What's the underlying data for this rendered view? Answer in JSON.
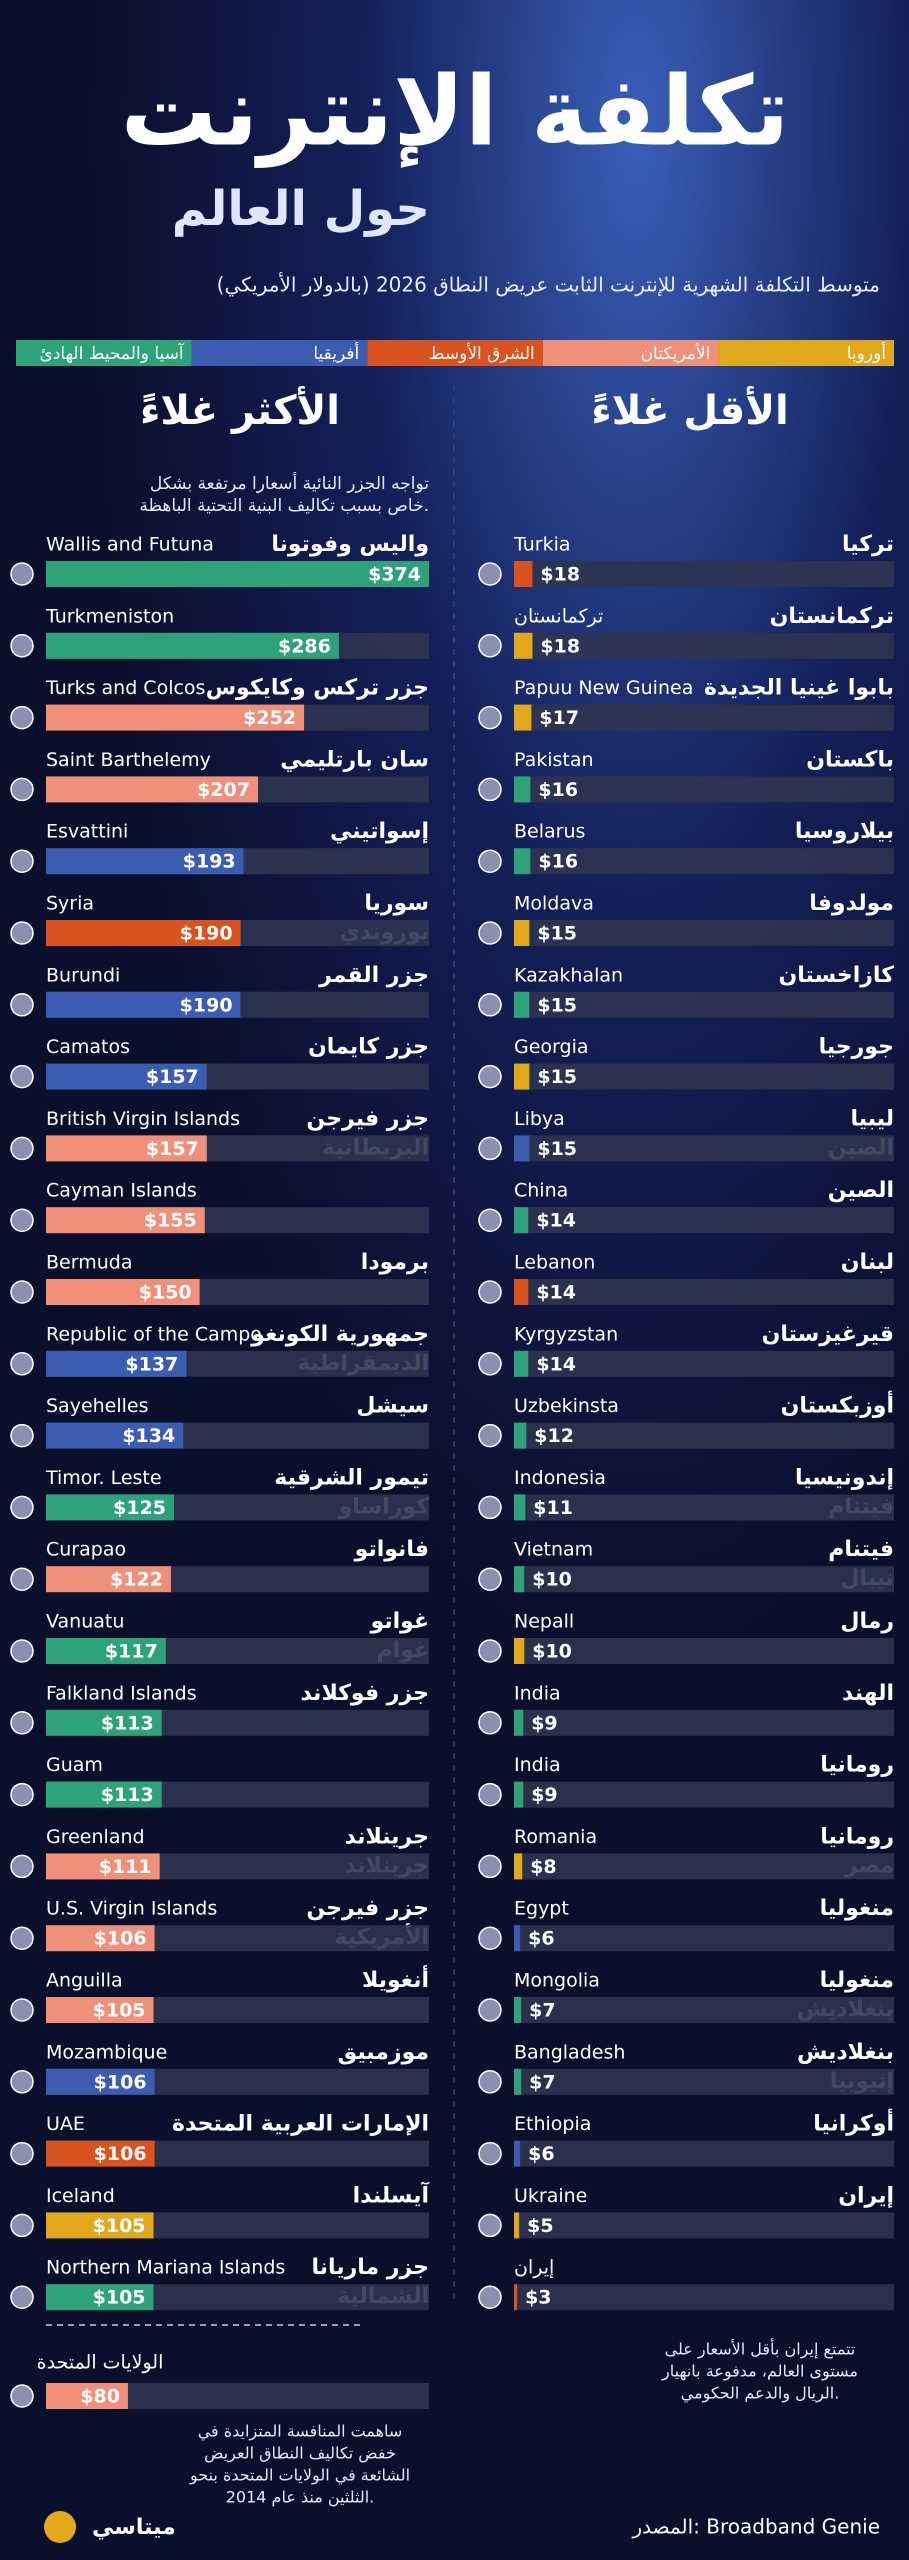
{
  "title": "تكلفة الإنترنت",
  "subtitle": "حول العالم",
  "description": "متوسط التكلفة الشهرية للإنترنت الثابت عريض النطاق 2026 (بالدولار الأمريكي)",
  "legend": [
    {
      "name": "أوروبا",
      "color": "#e0a81a"
    },
    {
      "name": "الأمريكتان",
      "color": "#f0907a"
    },
    {
      "name": "الشرق الأوسط",
      "color": "#d9531e"
    },
    {
      "name": "أفريقيا",
      "color": "#3b5cb0"
    },
    {
      "name": "آسيا والمحيط الهادئ",
      "color": "#2ea37a"
    }
  ],
  "note_islands": [
    "تواجه الجزر النائية أسعارا مرتفعة بشكل",
    "خاص بسبب تكاليف البنية التحتية الباهظة."
  ],
  "note_iran": [
    "تتمتع إيران بأقل الأسعار على",
    "مستوى العالم، مدفوعة بانهيار",
    "الريال والدعم الحكومي."
  ],
  "note_us": [
    "ساهمت المنافسة المتزايدة في",
    "خفض تكاليف النطاق العريض",
    "الشائعة في الولايات المتحدة بنحو",
    "الثلثين منذ عام 2014."
  ],
  "source": "المصدر: Broadband Genie",
  "brand": "ميتاسي",
  "chart_data": [
    {
      "type": "bar",
      "title": "الأكثر غلاءً",
      "categories": [
        "Wallis and Futuna",
        "Turkmeniston",
        "Turks and Colcos",
        "Saint Barthelemy",
        "Esvattini",
        "Syria",
        "Burundi",
        "Camatos",
        "British Virgin Islands",
        "Cayman Islands",
        "Bermuda",
        "Republic of the Campo",
        "Sayehelles",
        "Timor. Leste",
        "Curapao",
        "Vanuatu",
        "Falkland Islands",
        "Guam",
        "Greenland",
        "U.S. Virgin Islands",
        "Anguilla",
        "Mozambique",
        "UAE",
        "Iceland",
        "Northern Mariana Islands"
      ],
      "labels_ar": [
        [
          "واليس وفوتونا"
        ],
        [],
        [
          "جزر تركس وكايكوس"
        ],
        [
          "سان بارتليمي"
        ],
        [
          "إسواتيني"
        ],
        [
          "سوريا",
          "بوروندي"
        ],
        [
          "جزر القمر"
        ],
        [
          "جزر كايمان"
        ],
        [
          "جزر فيرجن",
          "البريطانية"
        ],
        [],
        [
          "برمودا"
        ],
        [
          "جمهورية الكونغو",
          "الديمقراطية"
        ],
        [
          "سيشل"
        ],
        [
          "تيمور الشرقية",
          "كوراساو"
        ],
        [
          "فانواتو"
        ],
        [
          "غواتو",
          "غوام"
        ],
        [
          "جزر فوكلاند"
        ],
        [],
        [
          "جرينلاند",
          "جرينلاند"
        ],
        [
          "جزر فيرجن",
          "الأمريكية"
        ],
        [
          "أنغويلا"
        ],
        [
          "موزمبيق"
        ],
        [
          "الإمارات العربية المتحدة"
        ],
        [
          "آيسلندا"
        ],
        [
          "جزر ماريانا",
          "الشمالية"
        ]
      ],
      "values": [
        374,
        286,
        252,
        207,
        193,
        190,
        190,
        157,
        157,
        155,
        150,
        137,
        134,
        125,
        122,
        117,
        113,
        113,
        111,
        106,
        105,
        106,
        106,
        105,
        105
      ],
      "value_labels": [
        "$374",
        "$286",
        "$252",
        "$207",
        "$193",
        "$190",
        "$190",
        "$157",
        "$157",
        "$155",
        "$150",
        "$137",
        "$134",
        "$125",
        "$122",
        "$117",
        "$113",
        "$113",
        "$111",
        "$106",
        "$105",
        "$106",
        "$106",
        "$105",
        "$105"
      ],
      "colors": [
        "#2ea37a",
        "#2ea37a",
        "#f0907a",
        "#f0907a",
        "#3b5cb0",
        "#d9531e",
        "#3b5cb0",
        "#3b5cb0",
        "#f0907a",
        "#f0907a",
        "#f0907a",
        "#3b5cb0",
        "#3b5cb0",
        "#2ea37a",
        "#f0907a",
        "#2ea37a",
        "#2ea37a",
        "#2ea37a",
        "#f0907a",
        "#f0907a",
        "#f0907a",
        "#3b5cb0",
        "#d9531e",
        "#e0a81a",
        "#2ea37a"
      ]
    },
    {
      "type": "bar",
      "title": "الأقل غلاءً",
      "categories": [
        "Turkia",
        "تركمانستان",
        "Papuu New Guinea",
        "Pakistan",
        "Belarus",
        "Moldava",
        "Kazakhalan",
        "Georgia",
        "Libya",
        "China",
        "Lebanon",
        "Kyrgyzstan",
        "Uzbekinsta",
        "Indonesia",
        "Vietnam",
        "Nepall",
        "India",
        "India",
        "Romania",
        "Egypt",
        "Mongolia",
        "Bangladesh",
        "Ethiopia",
        "Ukraine",
        "إيران"
      ],
      "labels_ar": [
        [
          "تركيا"
        ],
        [
          "تركمانستان"
        ],
        [
          "بابوا غينيا الجديدة"
        ],
        [
          "باكستان"
        ],
        [
          "بيلاروسيا"
        ],
        [
          "مولدوفا"
        ],
        [
          "كازاخستان"
        ],
        [
          "جورجيا"
        ],
        [
          "ليبيا",
          "الصين"
        ],
        [
          "الصين"
        ],
        [
          "لبنان"
        ],
        [
          "قيرغيزستان"
        ],
        [
          "أوزبكستان"
        ],
        [
          "إندونيسيا",
          "فيتنام"
        ],
        [
          "فيتنام",
          "نيبال"
        ],
        [
          "رمال"
        ],
        [
          "الهند"
        ],
        [
          "رومانيا"
        ],
        [
          "رومانيا",
          "مصر"
        ],
        [
          "منغوليا"
        ],
        [
          "منغوليا",
          "بنغلاديش"
        ],
        [
          "بنغلاديش",
          "إثيوبيا"
        ],
        [
          "أوكرانيا"
        ],
        [
          "إيران"
        ],
        []
      ],
      "values": [
        18,
        18,
        17,
        16,
        16,
        15,
        15,
        15,
        15,
        14,
        14,
        14,
        12,
        11,
        10,
        10,
        9,
        9,
        8,
        6,
        7,
        7,
        6,
        5,
        3
      ],
      "value_labels": [
        "$18",
        "$18",
        "$17",
        "$16",
        "$16",
        "$15",
        "$15",
        "$15",
        "$15",
        "$14",
        "$14",
        "$14",
        "$12",
        "$11",
        "$10",
        "$10",
        "$9",
        "$9",
        "$8",
        "$6",
        "$7",
        "$7",
        "$6",
        "$5",
        "$3"
      ],
      "colors": [
        "#d9531e",
        "#e0a81a",
        "#e0a81a",
        "#2ea37a",
        "#2ea37a",
        "#e0a81a",
        "#2ea37a",
        "#e0a81a",
        "#3b5cb0",
        "#2ea37a",
        "#d9531e",
        "#2ea37a",
        "#2ea37a",
        "#2ea37a",
        "#2ea37a",
        "#e0a81a",
        "#2ea37a",
        "#2ea37a",
        "#e0a81a",
        "#3b5cb0",
        "#2ea37a",
        "#2ea37a",
        "#3b5cb0",
        "#e0a81a",
        "#d9531e"
      ]
    },
    {
      "type": "bar",
      "categories": [
        "الولايات المتحدة"
      ],
      "values": [
        80
      ],
      "value_labels": [
        "$80"
      ],
      "colors": [
        "#f0907a"
      ]
    }
  ]
}
